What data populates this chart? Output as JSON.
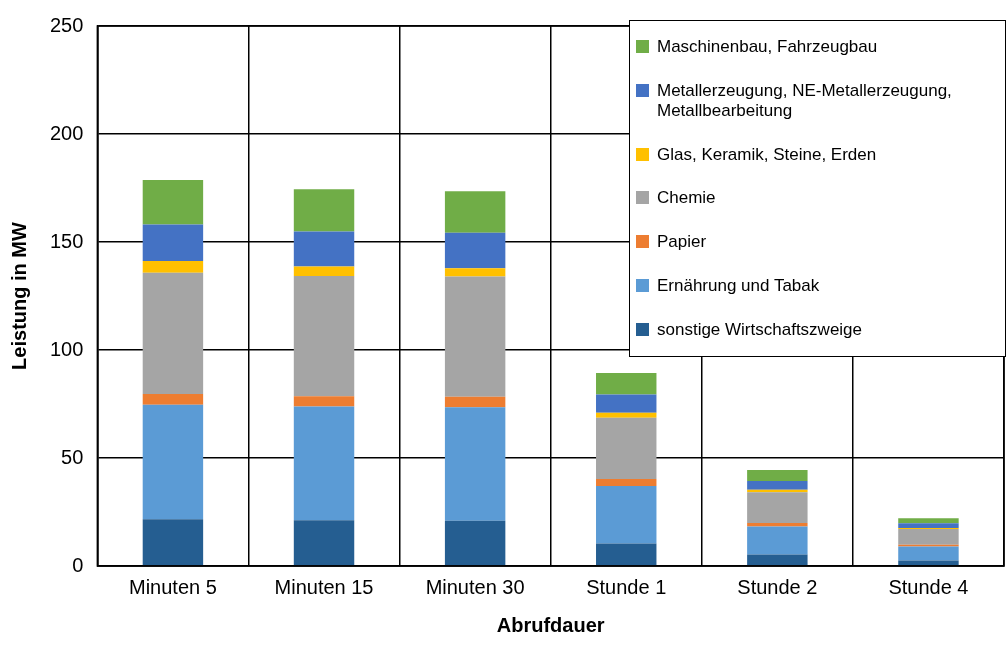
{
  "chart_data": {
    "type": "bar",
    "stacked": true,
    "xlabel": "Abrufdauer",
    "ylabel": "Leistung in MW",
    "categories": [
      "Minuten 5",
      "Minuten 15",
      "Minuten 30",
      "Stunde 1",
      "Stunde 2",
      "Stunde 4"
    ],
    "series": [
      {
        "name": "sonstige Wirtschaftszweige",
        "color": "#255e91",
        "values": [
          21.7,
          21.2,
          20.9,
          10.4,
          5.3,
          2.5
        ]
      },
      {
        "name": "Ernährung und Tabak",
        "color": "#5b9bd5",
        "values": [
          52.9,
          52.6,
          52.6,
          26.6,
          13.0,
          6.5
        ]
      },
      {
        "name": "Papier",
        "color": "#ed7d31",
        "values": [
          5.0,
          4.8,
          4.8,
          3.3,
          1.6,
          0.8
        ]
      },
      {
        "name": "Chemie",
        "color": "#a5a5a5",
        "values": [
          56.2,
          55.7,
          55.7,
          28.3,
          14.3,
          7.3
        ]
      },
      {
        "name": "Glas, Keramik, Steine, Erden",
        "color": "#ffc000",
        "values": [
          5.4,
          4.3,
          3.9,
          2.3,
          1.1,
          0.5
        ]
      },
      {
        "name": "Metallerzeugung, NE-Metallerzeugung, Metallbearbeitung",
        "color": "#4472c4",
        "values": [
          16.9,
          16.3,
          16.4,
          8.5,
          4.0,
          2.2
        ]
      },
      {
        "name": "Maschinenbau, Fahrzeugbau",
        "color": "#70ad47",
        "values": [
          20.6,
          19.5,
          19.2,
          9.9,
          5.1,
          2.3
        ]
      }
    ],
    "ylim": [
      0,
      250
    ],
    "yticks": [
      0,
      50,
      100,
      150,
      200,
      250
    ],
    "grid": true,
    "legend": "top right"
  }
}
